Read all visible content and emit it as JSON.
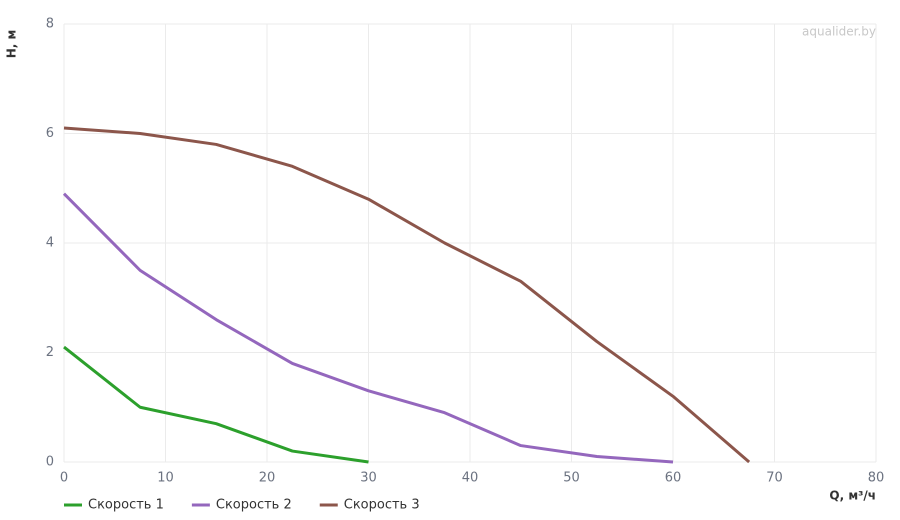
{
  "chart_data": {
    "type": "line",
    "watermark": "aqualider.by",
    "x_label": "Q, м³/ч",
    "y_label": "H, м",
    "xlim": [
      0,
      80
    ],
    "xticks": [
      0,
      10,
      20,
      30,
      40,
      50,
      60,
      70,
      80
    ],
    "ylim": [
      0,
      8
    ],
    "yticks": [
      0,
      2,
      4,
      6,
      8
    ],
    "grid": true,
    "legend": "bottom",
    "series": [
      {
        "name": "Скорость 1",
        "color": "#2ca02c",
        "x": [
          0,
          7.5,
          15,
          22.5,
          30
        ],
        "values": [
          2.1,
          1.0,
          0.7,
          0.2,
          0
        ]
      },
      {
        "name": "Скорость 2",
        "color": "#9467bd",
        "x": [
          0,
          7.5,
          15,
          22.5,
          30,
          37.5,
          45,
          52.5,
          60
        ],
        "values": [
          4.9,
          3.5,
          2.6,
          1.8,
          1.3,
          0.9,
          0.3,
          0.1,
          0
        ]
      },
      {
        "name": "Скорость 3",
        "color": "#8c564b",
        "x": [
          0,
          7.5,
          15,
          22.5,
          30,
          37.5,
          45,
          52.5,
          60,
          67.5
        ],
        "values": [
          6.1,
          6.0,
          5.8,
          5.4,
          4.8,
          4.0,
          3.3,
          2.2,
          1.2,
          0
        ]
      }
    ]
  }
}
